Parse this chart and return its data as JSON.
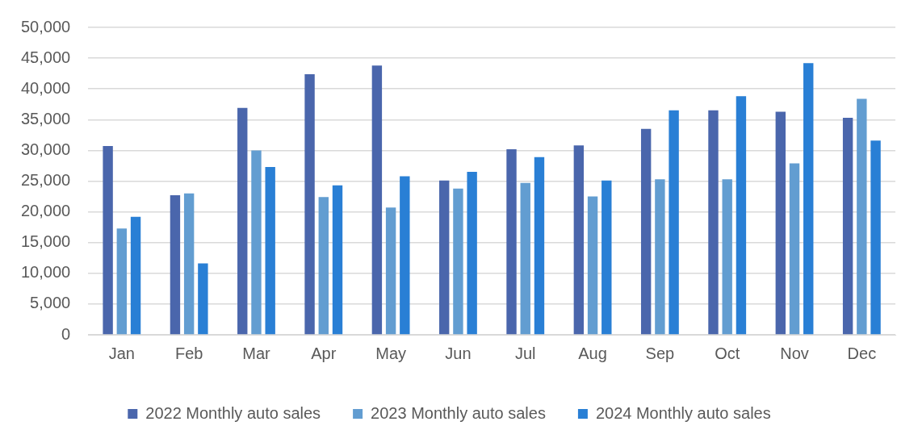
{
  "chart_data": {
    "type": "bar",
    "categories": [
      "Jan",
      "Feb",
      "Mar",
      "Apr",
      "May",
      "Jun",
      "Jul",
      "Aug",
      "Sep",
      "Oct",
      "Nov",
      "Dec"
    ],
    "series": [
      {
        "name": "2022 Monthly auto sales",
        "color": "#4a66ac",
        "values": [
          30700,
          22700,
          36900,
          42400,
          43800,
          25100,
          30200,
          30800,
          33500,
          36500,
          36300,
          35300
        ]
      },
      {
        "name": "2023 Monthly auto sales",
        "color": "#629dd1",
        "values": [
          17300,
          23000,
          30000,
          22400,
          20700,
          23800,
          24700,
          22500,
          25300,
          25300,
          27900,
          38400
        ]
      },
      {
        "name": "2024 Monthly auto sales",
        "color": "#297fd5",
        "values": [
          19200,
          11600,
          27300,
          24300,
          25800,
          26500,
          28900,
          25100,
          36500,
          38800,
          44200,
          31600
        ]
      }
    ],
    "ylim": [
      0,
      50000
    ],
    "yticks": [
      0,
      {
        "value": 5000,
        "label": "5,000"
      },
      {
        "value": 10000,
        "label": "10,000"
      },
      {
        "value": 15000,
        "label": "15,000"
      },
      {
        "value": 20000,
        "label": "20,000"
      },
      {
        "value": 25000,
        "label": "25,000"
      },
      {
        "value": 30000,
        "label": "30,000"
      },
      {
        "value": 35000,
        "label": "35,000"
      },
      {
        "value": 40000,
        "label": "40,000"
      },
      {
        "value": 45000,
        "label": "45,000"
      },
      {
        "value": 50000,
        "label": "50,000"
      }
    ],
    "grid": "y",
    "legend": "bottom"
  }
}
